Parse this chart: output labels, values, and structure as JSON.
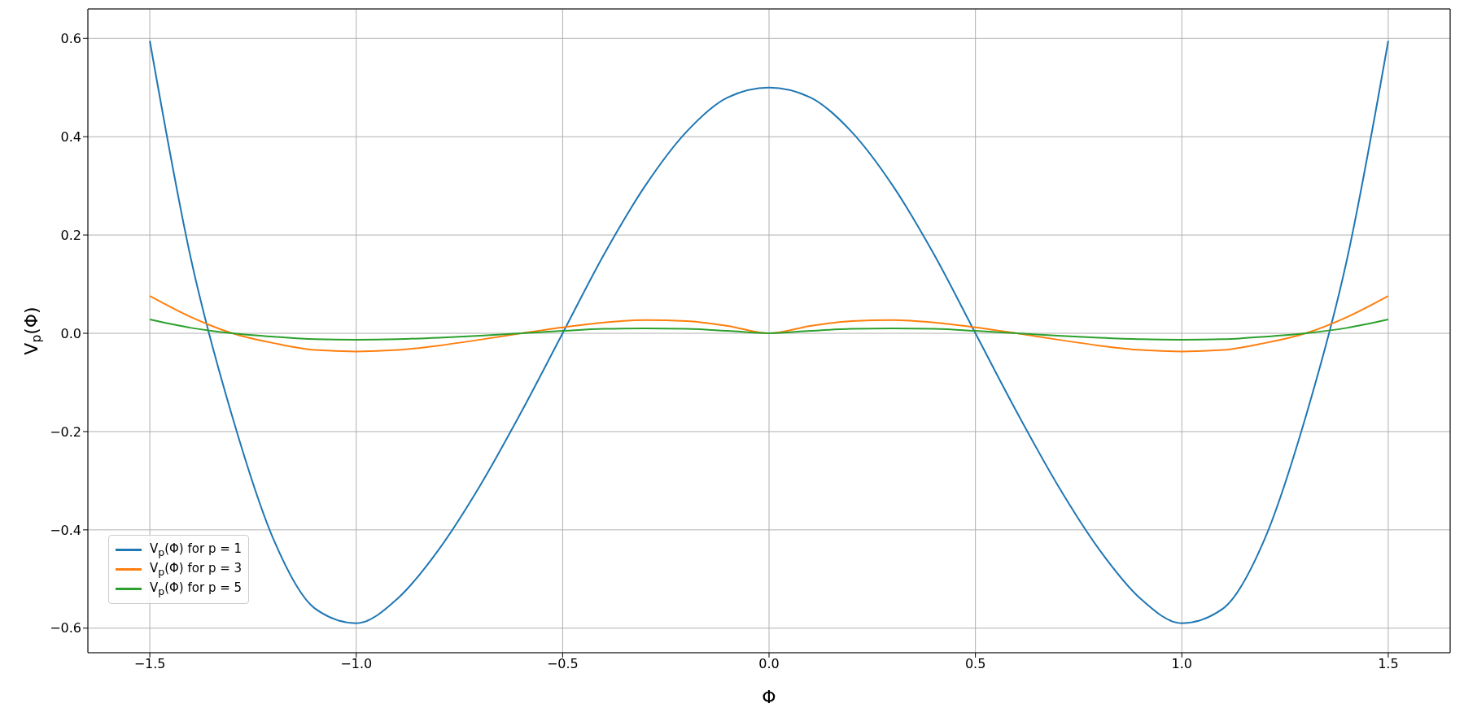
{
  "chart_data": {
    "type": "line",
    "xlabel": "Φ",
    "ylabel": "V$_{p}$(Φ)",
    "x": [
      -1.5,
      -1.4,
      -1.3,
      -1.2,
      -1.1,
      -1.0,
      -0.9,
      -0.8,
      -0.7,
      -0.6,
      -0.5,
      -0.4,
      -0.3,
      -0.2,
      -0.1,
      0,
      0.1,
      0.2,
      0.3,
      0.4,
      0.5,
      0.6,
      0.7,
      0.8,
      0.9,
      1.0,
      1.1,
      1.2,
      1.3,
      1.4,
      1.5
    ],
    "series": [
      {
        "name": "V$_{p}$(Φ) for p = 1",
        "color": "#1f77b4",
        "values": [
          0.595,
          0.15,
          -0.17,
          -0.42,
          -0.56,
          -0.59,
          -0.54,
          -0.44,
          -0.31,
          -0.16,
          0.0,
          0.16,
          0.3,
          0.41,
          0.48,
          0.5,
          0.48,
          0.41,
          0.3,
          0.16,
          0.0,
          -0.16,
          -0.31,
          -0.44,
          -0.54,
          -0.59,
          -0.56,
          -0.42,
          -0.17,
          0.15,
          0.595
        ]
      },
      {
        "name": "V$_{p}$(Φ) for p = 3",
        "color": "#ff7f0e",
        "values": [
          0.076,
          0.033,
          0.0,
          -0.02,
          -0.034,
          -0.037,
          -0.034,
          -0.025,
          -0.013,
          0.0,
          0.012,
          0.022,
          0.027,
          0.025,
          0.015,
          0.0,
          0.015,
          0.025,
          0.027,
          0.022,
          0.012,
          0.0,
          -0.013,
          -0.025,
          -0.034,
          -0.037,
          -0.034,
          -0.02,
          0.0,
          0.033,
          0.076
        ]
      },
      {
        "name": "V$_{p}$(Φ) for p = 5",
        "color": "#2ca02c",
        "values": [
          0.028,
          0.011,
          0.0,
          -0.007,
          -0.012,
          -0.013,
          -0.012,
          -0.009,
          -0.005,
          0.0,
          0.005,
          0.009,
          0.01,
          0.009,
          0.005,
          0.0,
          0.005,
          0.009,
          0.01,
          0.009,
          0.005,
          0.0,
          -0.005,
          -0.009,
          -0.012,
          -0.013,
          -0.012,
          -0.007,
          0.0,
          0.011,
          0.028
        ]
      }
    ],
    "xlim": [
      -1.65,
      1.65
    ],
    "xticks": [
      {
        "value": -1.5,
        "label": "−1.5"
      },
      {
        "value": -1.0,
        "label": "−1.0"
      },
      {
        "value": -0.5,
        "label": "−0.5"
      },
      {
        "value": 0,
        "label": "0.0"
      },
      {
        "value": 0.5,
        "label": "0.5"
      },
      {
        "value": 1.0,
        "label": "1.0"
      },
      {
        "value": 1.5,
        "label": "1.5"
      }
    ],
    "ylim": [
      -0.65,
      0.66
    ],
    "yticks": [
      {
        "value": -0.6,
        "label": "−0.6"
      },
      {
        "value": -0.4,
        "label": "−0.4"
      },
      {
        "value": -0.2,
        "label": "−0.2"
      },
      {
        "value": 0,
        "label": "0.0"
      },
      {
        "value": 0.2,
        "label": "0.2"
      },
      {
        "value": 0.4,
        "label": "0.4"
      },
      {
        "value": 0.6,
        "label": "0.6"
      }
    ],
    "grid": true,
    "legend": "bottom left",
    "marker": "none",
    "line_style": "solid"
  }
}
